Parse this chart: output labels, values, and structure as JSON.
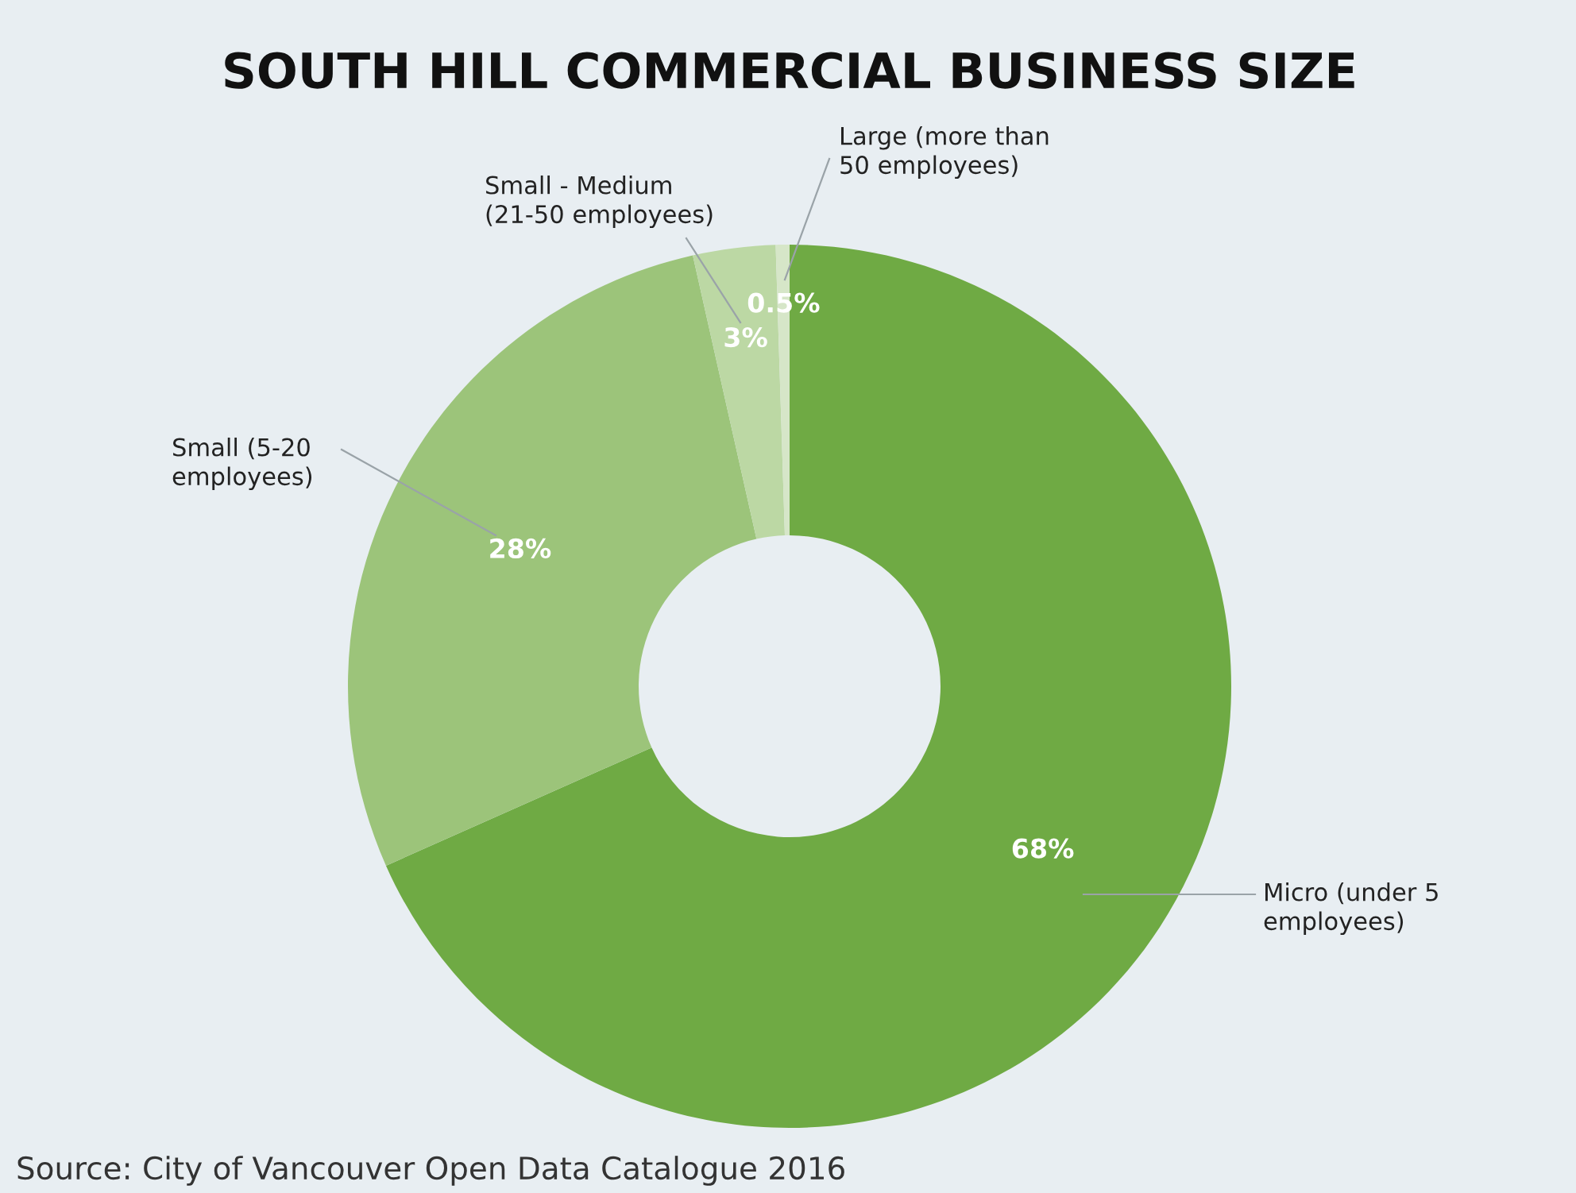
{
  "chart_data": {
    "type": "donut",
    "title": "SOUTH HILL COMMERCIAL BUSINESS SIZE",
    "categories": [
      "Micro (under 5\nemployees)",
      "Small (5-20\nemployees)",
      "Small - Medium\n(21-50 employees)",
      "Large (more than\n50 employees)"
    ],
    "values": [
      68,
      28,
      3,
      0.5
    ],
    "colors": [
      "#6faa44",
      "#9cc47a",
      "#bcd8a4",
      "#d6e6c8"
    ],
    "value_labels": [
      "68%",
      "28%",
      "3%",
      "0.5%"
    ],
    "annotations": [
      "Source: City of Vancouver Open Data Catalogue 2016"
    ]
  }
}
